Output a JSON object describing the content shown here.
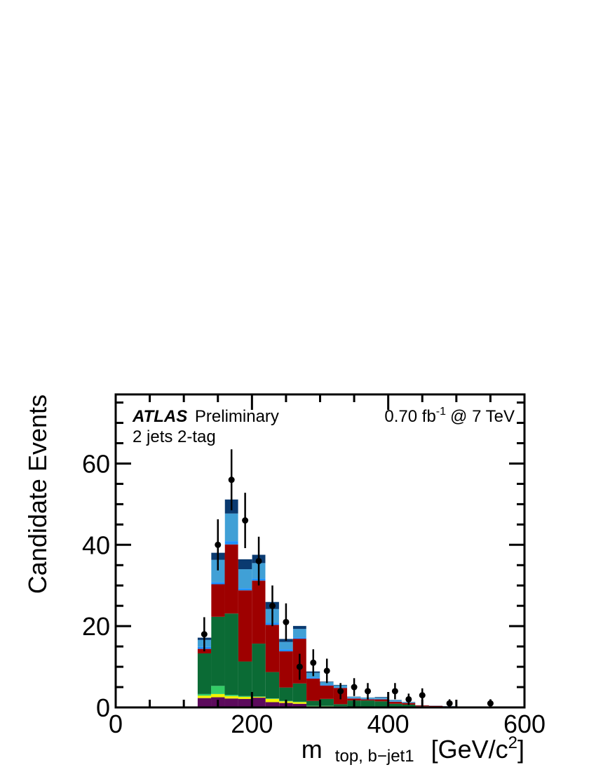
{
  "chart_data": {
    "type": "bar",
    "stacked": true,
    "histogram": true,
    "ylabel": "Candidate Events",
    "xlabel_main": "m",
    "xlabel_sub": "top, b−jet1",
    "xlabel_unit": "[GeV/c",
    "xlabel_unit_sup": "2",
    "xlabel_unit_close": "]",
    "xlim": [
      0,
      600
    ],
    "ylim": [
      0,
      77
    ],
    "x_ticks": [
      0,
      200,
      400,
      600
    ],
    "x_tick_labels": [
      "0",
      "200",
      "400",
      "600"
    ],
    "y_ticks": [
      0,
      20,
      40,
      60
    ],
    "y_tick_labels": [
      "0",
      "20",
      "40",
      "60"
    ],
    "annotations": {
      "atlas": "ATLAS",
      "preliminary": "Preliminary",
      "selection": "2 jets 2-tag",
      "lumi": "0.70 fb",
      "lumi_exp": "-1",
      "energy": "@ 7 TeV"
    },
    "bin_edges": [
      0,
      20,
      40,
      60,
      80,
      100,
      120,
      140,
      160,
      180,
      200,
      220,
      240,
      260,
      280,
      300,
      320,
      340,
      360,
      380,
      400,
      420,
      440,
      460,
      480,
      500,
      520,
      540,
      560,
      580,
      600
    ],
    "series": [
      {
        "color": "#5c0a5c",
        "values": [
          0,
          0,
          0,
          0,
          0,
          0,
          2.3,
          2.5,
          2.2,
          2.1,
          2.4,
          1.3,
          1.1,
          0.9,
          0.2,
          0.2,
          0.1,
          0.1,
          0.1,
          0.1,
          0.1,
          0.1,
          0.1,
          0,
          0,
          0,
          0,
          0,
          0,
          0
        ]
      },
      {
        "color": "#f2f200",
        "values": [
          0,
          0,
          0,
          0,
          0,
          0,
          0.6,
          0.8,
          0.6,
          0.5,
          0.2,
          0.8,
          0.4,
          0.4,
          0.1,
          0.1,
          0.1,
          0,
          0,
          0,
          0,
          0,
          0,
          0,
          0,
          0,
          0,
          0,
          0,
          0
        ]
      },
      {
        "color": "#33cc66",
        "values": [
          0,
          0,
          0,
          0,
          0,
          0,
          0.4,
          2.0,
          0.3,
          0.2,
          0.1,
          0.1,
          0.1,
          0.1,
          0.1,
          0.1,
          0.1,
          0,
          0,
          0,
          0,
          0,
          0,
          0,
          0,
          0,
          0,
          0,
          0,
          0
        ]
      },
      {
        "color": "#0b6b35",
        "values": [
          0,
          0,
          0,
          0,
          0,
          0,
          10.0,
          17.0,
          20.0,
          8.5,
          13.0,
          6.5,
          3.3,
          4.5,
          1.2,
          1.7,
          0.5,
          1.6,
          1.6,
          1.4,
          0.8,
          0.6,
          0.2,
          0.2,
          0.2,
          0.1,
          0.1,
          0.1,
          0.1,
          0.1
        ]
      },
      {
        "color": "#9e0000",
        "values": [
          0,
          0,
          0,
          0,
          0,
          0,
          1.1,
          8.0,
          17.0,
          17.5,
          15.5,
          11.6,
          8.9,
          11.0,
          5.5,
          3.3,
          4.0,
          0.5,
          0.3,
          0.5,
          0.5,
          0.4,
          0.2,
          0.2,
          0.1,
          0.1,
          0,
          0,
          0,
          0.2
        ]
      },
      {
        "color": "#1e90ff",
        "values": [
          0,
          0,
          0,
          0,
          0,
          0,
          0.5,
          0.5,
          0.8,
          0.5,
          0.5,
          0.5,
          0.5,
          0.3,
          0.3,
          0.2,
          0.1,
          0.1,
          0.1,
          0.1,
          0.1,
          0,
          0,
          0,
          0,
          0,
          0,
          0,
          0,
          0
        ]
      },
      {
        "color": "#40a0d6",
        "values": [
          0,
          0,
          0,
          0,
          0,
          0,
          1.7,
          5.5,
          6.8,
          4.7,
          3.8,
          3.4,
          1.8,
          2.1,
          1.1,
          0.6,
          0.5,
          0.3,
          0.3,
          0.3,
          0.3,
          0.2,
          0.1,
          0.1,
          0.1,
          0,
          0,
          0,
          0,
          0
        ]
      },
      {
        "color": "#0a3a70",
        "values": [
          0,
          0,
          0,
          0,
          0,
          0,
          0.6,
          1.8,
          3.5,
          2.5,
          2.1,
          1.8,
          0.8,
          0.8,
          0.4,
          0.2,
          0.2,
          0.1,
          0.1,
          0.2,
          0.1,
          0.1,
          0,
          0,
          0,
          0,
          0,
          0,
          0,
          0
        ]
      }
    ],
    "data_points": {
      "x": [
        130,
        150,
        170,
        190,
        210,
        230,
        250,
        270,
        290,
        310,
        330,
        350,
        370,
        410,
        430,
        450,
        490,
        550
      ],
      "y": [
        18,
        40,
        56,
        46,
        36,
        25,
        21,
        10,
        11,
        9,
        4,
        5,
        4,
        4,
        2,
        3,
        1,
        1
      ],
      "err": [
        4.2,
        6.3,
        7.5,
        6.8,
        6.0,
        5.0,
        4.6,
        3.2,
        3.3,
        3.0,
        2.0,
        2.2,
        2.0,
        2.0,
        1.4,
        1.7,
        1.0,
        1.0
      ]
    }
  }
}
